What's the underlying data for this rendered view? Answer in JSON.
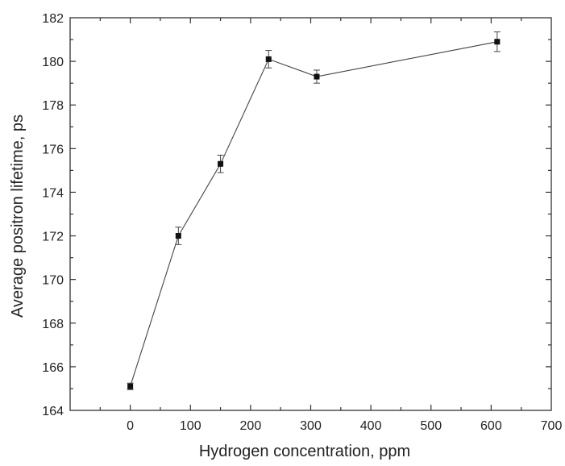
{
  "chart_data": {
    "type": "line",
    "title": "",
    "xlabel": "Hydrogen concentration, ppm",
    "ylabel": "Average positron lifetime, ps",
    "xlim": [
      -100,
      700
    ],
    "ylim": [
      164,
      182
    ],
    "x_ticks": [
      0,
      100,
      200,
      300,
      400,
      500,
      600,
      700
    ],
    "y_ticks": [
      164,
      166,
      168,
      170,
      172,
      174,
      176,
      178,
      180,
      182
    ],
    "x_tick_labels": [
      "0",
      "100",
      "200",
      "300",
      "400",
      "500",
      "600",
      "700"
    ],
    "y_tick_labels": [
      "164",
      "166",
      "168",
      "170",
      "172",
      "174",
      "176",
      "178",
      "180",
      "182"
    ],
    "grid": false,
    "series": [
      {
        "x": [
          0,
          80,
          150,
          230,
          310,
          610
        ],
        "y": [
          165.1,
          172.0,
          175.3,
          180.1,
          179.3,
          180.9
        ],
        "error": [
          0.15,
          0.4,
          0.4,
          0.4,
          0.3,
          0.45
        ],
        "color": "#111111",
        "marker": "square"
      }
    ]
  }
}
